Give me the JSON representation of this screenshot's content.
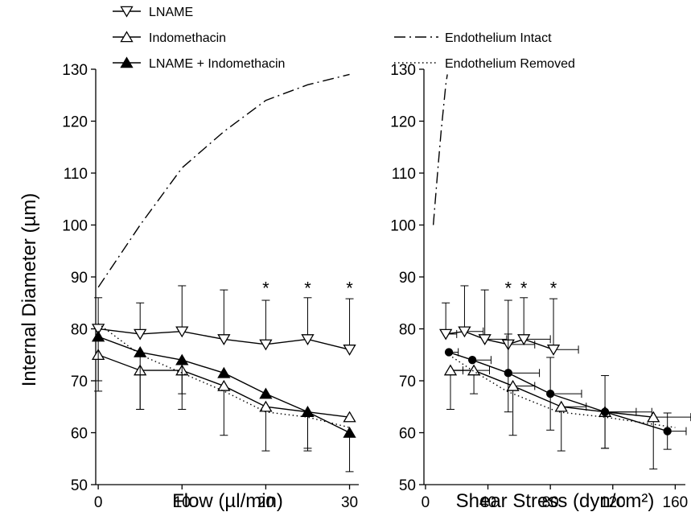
{
  "chart_data": [
    {
      "type": "line",
      "x_label": "Flow (µl/min)",
      "y_label": "Internal Diameter (µm)",
      "x": [
        0,
        5,
        10,
        15,
        20,
        25,
        30
      ],
      "xlim": [
        -0.3,
        31.1
      ],
      "xticks": [
        0,
        10,
        20,
        30
      ],
      "ylim": [
        50,
        130
      ],
      "yticks": [
        50,
        60,
        70,
        80,
        90,
        100,
        110,
        120,
        130
      ],
      "series": [
        {
          "name": "LNAME",
          "color": "#000000",
          "style": "solid",
          "marker": "triangle-down-open",
          "error_side": "up",
          "values": [
            80,
            79,
            79.5,
            78,
            77,
            78,
            76
          ],
          "yerr": [
            6,
            6,
            8.8,
            9.5,
            8.5,
            8,
            9.8
          ]
        },
        {
          "name": "Indomethacin",
          "color": "#000000",
          "style": "solid",
          "marker": "triangle-up-open",
          "error_side": "down",
          "values": [
            75,
            72,
            72,
            69,
            65,
            64,
            63
          ],
          "yerr": [
            7,
            7.5,
            4.5,
            9.5,
            8.5,
            7,
            null
          ]
        },
        {
          "name": "LNAME + Indomethacin",
          "color": "#000000",
          "style": "solid",
          "marker": "triangle-up-filled",
          "error_side": "down",
          "values": [
            78.5,
            75.5,
            74,
            71.5,
            67.5,
            64,
            60
          ],
          "yerr": [
            8.5,
            11,
            9.5,
            null,
            null,
            7.5,
            7.5
          ]
        },
        {
          "name": "Endothelium Intact",
          "color": "#000000",
          "style": "dashdot",
          "marker": "none",
          "values": [
            88,
            100,
            111,
            118,
            124,
            127,
            129
          ]
        },
        {
          "name": "Endothelium Removed",
          "color": "#000000",
          "style": "dotted",
          "marker": "none",
          "values": [
            81,
            75,
            71.5,
            68,
            64,
            63,
            61
          ]
        }
      ],
      "annotations": [
        {
          "text": "*",
          "x": 20,
          "y": 88.5
        },
        {
          "text": "*",
          "x": 25,
          "y": 88.5
        },
        {
          "text": "*",
          "x": 30,
          "y": 88.5
        }
      ]
    },
    {
      "type": "line",
      "x_label": "Shear Stress (dyn/cm²)",
      "xlim": [
        -1,
        166.5
      ],
      "xticks": [
        0,
        40,
        80,
        120,
        160
      ],
      "ylim": [
        50,
        130
      ],
      "yticks": [
        50,
        60,
        70,
        80,
        90,
        100,
        110,
        120,
        130
      ],
      "series": [
        {
          "name": "LNAME",
          "color": "#000000",
          "style": "solid",
          "marker": "triangle-down-open",
          "error_side": "up",
          "x": [
            13,
            25,
            38,
            53,
            63,
            82
          ],
          "values": [
            79,
            79.5,
            78,
            77,
            78,
            76
          ],
          "yerr": [
            6,
            8.8,
            9.5,
            8.5,
            8,
            9.8
          ],
          "xerr": [
            7,
            12,
            14,
            17,
            17,
            16
          ]
        },
        {
          "name": "Indomethacin",
          "color": "#000000",
          "style": "solid",
          "marker": "triangle-up-open",
          "error_side": "down",
          "x": [
            16,
            31,
            56,
            87,
            115,
            146
          ],
          "values": [
            72,
            72,
            69,
            65,
            64,
            63
          ],
          "yerr": [
            7.5,
            4.5,
            9.5,
            8.5,
            7,
            10
          ],
          "xerr": [
            8,
            10,
            14,
            16,
            20,
            24
          ]
        },
        {
          "name": "LNAME + Indomethacin",
          "color": "#000000",
          "style": "solid",
          "marker": "circle-filled",
          "error_side": "both",
          "x": [
            15,
            30,
            53,
            80,
            115,
            155
          ],
          "values": [
            75.5,
            74,
            71.5,
            67.5,
            64,
            60.3
          ],
          "yerr": [
            null,
            null,
            7.5,
            7,
            7,
            3.5
          ],
          "xerr": [
            6,
            12,
            20,
            20,
            30,
            12
          ]
        },
        {
          "name": "Endothelium Intact",
          "color": "#000000",
          "style": "dashdot",
          "marker": "none",
          "x": [
            5,
            8,
            10,
            12,
            13,
            14
          ],
          "values": [
            100,
            111,
            118,
            124,
            127,
            129
          ]
        },
        {
          "name": "Endothelium Removed",
          "color": "#000000",
          "style": "dotted",
          "marker": "none",
          "x": [
            15,
            30,
            52,
            85,
            115,
            160
          ],
          "values": [
            75,
            72,
            68,
            64,
            63,
            61
          ]
        }
      ],
      "annotations": [
        {
          "text": "*",
          "x": 53,
          "y": 88.5
        },
        {
          "text": "*",
          "x": 63,
          "y": 88.5
        },
        {
          "text": "*",
          "x": 82,
          "y": 88.5
        }
      ]
    }
  ]
}
